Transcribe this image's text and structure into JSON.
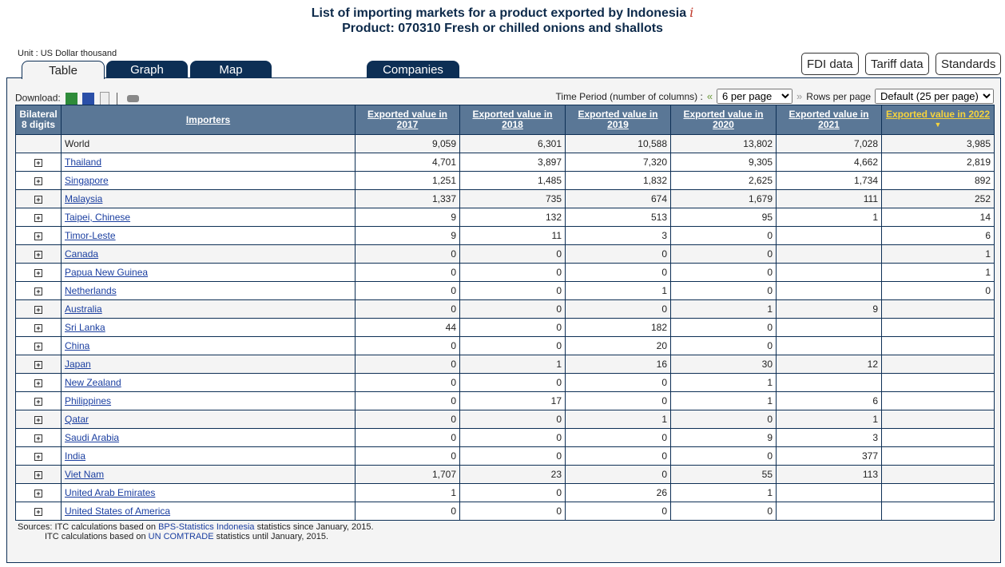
{
  "title": {
    "line1": "List of importing markets for a product exported by Indonesia",
    "line2": "Product: 070310 Fresh or chilled onions and shallots",
    "info_icon": "i"
  },
  "unit": "Unit : US Dollar thousand",
  "tabs": [
    "Table",
    "Graph",
    "Map",
    "Companies"
  ],
  "buttons": [
    "FDI data",
    "Tariff data",
    "Standards"
  ],
  "download_label": "Download:",
  "time_period_label": "Time Period (number of columns) :",
  "time_period_value": "6 per page",
  "rows_per_page_label": "Rows per page",
  "rows_per_page_value": "Default (25 per page)",
  "headers": {
    "bilateral": "Bilateral 8 digits",
    "importers": "Importers",
    "years": [
      "Exported value in 2017",
      "Exported value in 2018",
      "Exported value in 2019",
      "Exported value in 2020",
      "Exported value in 2021",
      "Exported value in 2022"
    ],
    "sort_icon": "▼"
  },
  "rows": [
    {
      "name": "World",
      "v": [
        "9,059",
        "6,301",
        "10,588",
        "13,802",
        "7,028",
        "3,985"
      ]
    },
    {
      "name": "Thailand",
      "v": [
        "4,701",
        "3,897",
        "7,320",
        "9,305",
        "4,662",
        "2,819"
      ]
    },
    {
      "name": "Singapore",
      "v": [
        "1,251",
        "1,485",
        "1,832",
        "2,625",
        "1,734",
        "892"
      ]
    },
    {
      "name": "Malaysia",
      "v": [
        "1,337",
        "735",
        "674",
        "1,679",
        "111",
        "252"
      ]
    },
    {
      "name": "Taipei, Chinese",
      "v": [
        "9",
        "132",
        "513",
        "95",
        "1",
        "14"
      ]
    },
    {
      "name": "Timor-Leste",
      "v": [
        "9",
        "11",
        "3",
        "0",
        "",
        "6"
      ]
    },
    {
      "name": "Canada",
      "v": [
        "0",
        "0",
        "0",
        "0",
        "",
        "1"
      ]
    },
    {
      "name": "Papua New Guinea",
      "v": [
        "0",
        "0",
        "0",
        "0",
        "",
        "1"
      ]
    },
    {
      "name": "Netherlands",
      "v": [
        "0",
        "0",
        "1",
        "0",
        "",
        "0"
      ]
    },
    {
      "name": "Australia",
      "v": [
        "0",
        "0",
        "0",
        "1",
        "9",
        ""
      ]
    },
    {
      "name": "Sri Lanka",
      "v": [
        "44",
        "0",
        "182",
        "0",
        "",
        ""
      ]
    },
    {
      "name": "China",
      "v": [
        "0",
        "0",
        "20",
        "0",
        "",
        ""
      ]
    },
    {
      "name": "Japan",
      "v": [
        "0",
        "1",
        "16",
        "30",
        "12",
        ""
      ]
    },
    {
      "name": "New Zealand",
      "v": [
        "0",
        "0",
        "0",
        "1",
        "",
        ""
      ]
    },
    {
      "name": "Philippines",
      "v": [
        "0",
        "17",
        "0",
        "1",
        "6",
        ""
      ]
    },
    {
      "name": "Qatar",
      "v": [
        "0",
        "0",
        "1",
        "0",
        "1",
        ""
      ]
    },
    {
      "name": "Saudi Arabia",
      "v": [
        "0",
        "0",
        "0",
        "9",
        "3",
        ""
      ]
    },
    {
      "name": "India",
      "v": [
        "0",
        "0",
        "0",
        "0",
        "377",
        ""
      ]
    },
    {
      "name": "Viet Nam",
      "v": [
        "1,707",
        "23",
        "0",
        "55",
        "113",
        ""
      ]
    },
    {
      "name": "United Arab Emirates",
      "v": [
        "1",
        "0",
        "26",
        "1",
        "",
        ""
      ]
    },
    {
      "name": "United States of America",
      "v": [
        "0",
        "0",
        "0",
        "0",
        "",
        ""
      ]
    }
  ],
  "sources": {
    "l1_pre": "Sources: ITC calculations based on ",
    "l1_link": "BPS-Statistics Indonesia",
    "l1_post": " statistics since January, 2015.",
    "l2_pre": "ITC calculations based on ",
    "l2_link": "UN COMTRADE",
    "l2_post": " statistics until January, 2015."
  }
}
